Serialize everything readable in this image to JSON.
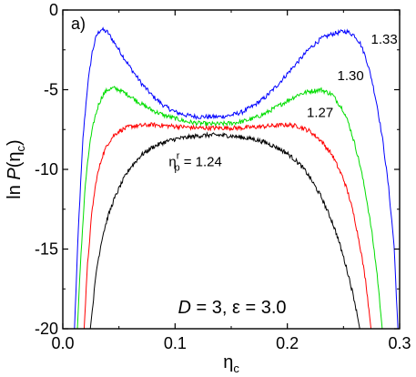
{
  "chart_data": {
    "type": "line",
    "panel_label": "a)",
    "xlabel_main": "η",
    "xlabel_sub": "c",
    "ylabel_prefix": "ln ",
    "ylabel_italic": "P",
    "ylabel_open": "(η",
    "ylabel_sub": "c",
    "ylabel_close": ")",
    "xlim": [
      0.0,
      0.3
    ],
    "ylim": [
      -20,
      0
    ],
    "xticks": [
      0.0,
      0.1,
      0.2,
      0.3
    ],
    "xtick_labels": [
      "0.0",
      "0.1",
      "0.2",
      "0.3"
    ],
    "yticks": [
      0,
      -5,
      -10,
      -15,
      -20
    ],
    "ytick_labels": [
      "0",
      "-5",
      "-10",
      "-15",
      "-20"
    ],
    "grid": false,
    "parameter_text": {
      "D_italic": "D",
      "D_rest": " = 3, ε = 3.0"
    },
    "series": [
      {
        "name": "1.33",
        "color": "#0000ff",
        "x": [
          0.0104,
          0.014,
          0.018,
          0.022,
          0.026,
          0.03,
          0.034,
          0.04,
          0.05,
          0.06,
          0.07,
          0.08,
          0.09,
          0.1,
          0.11,
          0.12,
          0.13,
          0.14,
          0.15,
          0.16,
          0.17,
          0.18,
          0.19,
          0.2,
          0.21,
          0.22,
          0.23,
          0.24,
          0.25,
          0.253,
          0.26,
          0.265,
          0.27,
          0.275,
          0.28,
          0.285,
          0.29,
          0.295,
          0.2985
        ],
        "y": [
          -20,
          -13.5,
          -8.0,
          -4.8,
          -2.7,
          -1.6,
          -1.2,
          -1.4,
          -2.5,
          -3.6,
          -4.6,
          -5.4,
          -6.0,
          -6.4,
          -6.6,
          -6.7,
          -6.7,
          -6.7,
          -6.6,
          -6.4,
          -6.0,
          -5.5,
          -4.8,
          -4.0,
          -3.2,
          -2.4,
          -1.8,
          -1.5,
          -1.35,
          -1.35,
          -1.6,
          -2.1,
          -3.0,
          -4.3,
          -6.0,
          -8.2,
          -11.0,
          -14.7,
          -20
        ]
      },
      {
        "name": "1.30",
        "color": "#00dd00",
        "x": [
          0.013,
          0.016,
          0.02,
          0.024,
          0.028,
          0.032,
          0.036,
          0.04,
          0.045,
          0.05,
          0.06,
          0.07,
          0.08,
          0.09,
          0.1,
          0.11,
          0.12,
          0.13,
          0.14,
          0.15,
          0.16,
          0.17,
          0.18,
          0.19,
          0.2,
          0.21,
          0.22,
          0.23,
          0.24,
          0.25,
          0.255,
          0.26,
          0.265,
          0.27,
          0.275,
          0.28,
          0.2845
        ],
        "y": [
          -20,
          -15.5,
          -11.0,
          -8.4,
          -6.9,
          -5.9,
          -5.3,
          -5.0,
          -4.9,
          -5.0,
          -5.4,
          -5.9,
          -6.3,
          -6.6,
          -6.8,
          -7.0,
          -7.1,
          -7.15,
          -7.15,
          -7.1,
          -7.0,
          -6.8,
          -6.5,
          -6.1,
          -5.7,
          -5.3,
          -5.1,
          -5.0,
          -5.3,
          -6.3,
          -7.2,
          -8.4,
          -9.8,
          -11.6,
          -13.8,
          -16.6,
          -20
        ]
      },
      {
        "name": "1.27",
        "color": "#ff0000",
        "x": [
          0.019,
          0.022,
          0.026,
          0.03,
          0.035,
          0.04,
          0.045,
          0.05,
          0.06,
          0.07,
          0.08,
          0.09,
          0.1,
          0.11,
          0.12,
          0.13,
          0.14,
          0.15,
          0.16,
          0.17,
          0.18,
          0.19,
          0.2,
          0.21,
          0.22,
          0.23,
          0.24,
          0.25,
          0.255,
          0.26,
          0.265,
          0.27,
          0.2745
        ],
        "y": [
          -20,
          -16.0,
          -12.6,
          -10.6,
          -9.2,
          -8.4,
          -7.9,
          -7.6,
          -7.3,
          -7.25,
          -7.2,
          -7.25,
          -7.3,
          -7.35,
          -7.4,
          -7.4,
          -7.4,
          -7.4,
          -7.4,
          -7.35,
          -7.3,
          -7.25,
          -7.2,
          -7.3,
          -7.6,
          -8.2,
          -9.1,
          -10.6,
          -11.7,
          -13.1,
          -14.9,
          -17.1,
          -20
        ]
      },
      {
        "name": "η_p^r = 1.24",
        "color": "#000000",
        "x": [
          0.0245,
          0.03,
          0.035,
          0.04,
          0.045,
          0.05,
          0.055,
          0.06,
          0.07,
          0.08,
          0.09,
          0.1,
          0.11,
          0.12,
          0.13,
          0.14,
          0.15,
          0.16,
          0.17,
          0.18,
          0.19,
          0.2,
          0.21,
          0.215,
          0.22,
          0.23,
          0.24,
          0.245,
          0.25,
          0.255,
          0.26,
          0.2645
        ],
        "y": [
          -20,
          -16.3,
          -14.3,
          -13.0,
          -12.0,
          -11.2,
          -10.5,
          -9.9,
          -9.1,
          -8.6,
          -8.3,
          -8.1,
          -8.0,
          -7.9,
          -7.85,
          -7.85,
          -7.9,
          -8.0,
          -8.1,
          -8.3,
          -8.6,
          -9.0,
          -9.6,
          -10.0,
          -10.5,
          -11.7,
          -13.3,
          -14.3,
          -15.5,
          -16.8,
          -18.3,
          -20
        ]
      }
    ],
    "curve_labels": [
      {
        "key": "1.33",
        "text": "1.33",
        "at": [
          0.2745,
          -2.1
        ]
      },
      {
        "key": "1.30",
        "text": "1.30",
        "at": [
          0.2445,
          -4.4
        ]
      },
      {
        "key": "1.27",
        "text": "1.27",
        "at": [
          0.2173,
          -6.7
        ]
      },
      {
        "key": "1.24",
        "main": "η",
        "sup": "r",
        "sub": "p",
        "rest": " = 1.24",
        "at": [
          0.0944,
          -9.8
        ]
      }
    ]
  }
}
